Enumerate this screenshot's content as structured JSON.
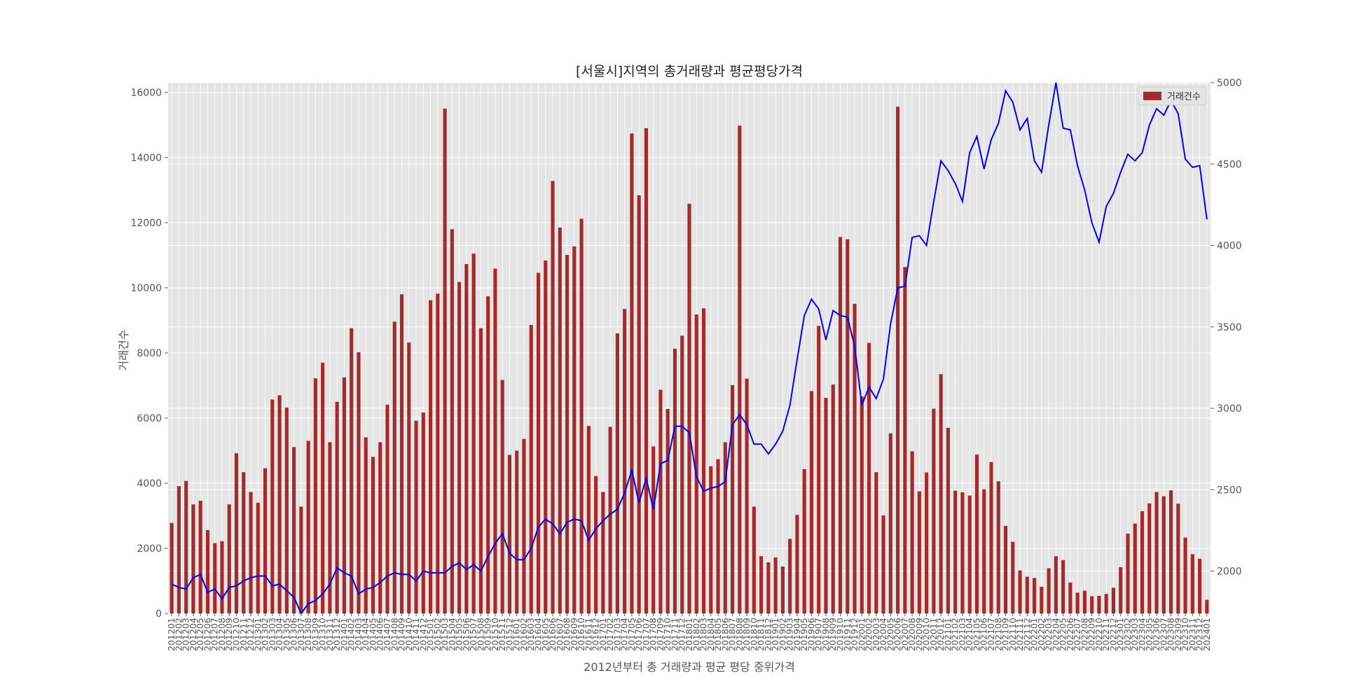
{
  "chart_data": {
    "type": "bar",
    "title": "[서울시]지역의 총거래량과 평균평당가격",
    "xlabel": "2012년부터 총 거래량과 평균 평당 중위가격",
    "ylabel": "거래건수",
    "ylim": [
      0,
      16300
    ],
    "y_ticks": [
      0,
      2000,
      4000,
      6000,
      8000,
      10000,
      12000,
      14000,
      16000
    ],
    "y2lim": [
      1740,
      5000
    ],
    "y2_ticks": [
      2000,
      2500,
      3000,
      3500,
      4000,
      4500,
      5000
    ],
    "grid": true,
    "legend": "top-right",
    "colors": {
      "bar": "#a52a2a",
      "line": "#0000ff",
      "plot_bg": "#e5e5e5",
      "grid": "#ffffff"
    },
    "categories": [
      "201201",
      "201202",
      "201203",
      "201204",
      "201205",
      "201206",
      "201207",
      "201208",
      "201209",
      "201210",
      "201211",
      "201212",
      "201301",
      "201302",
      "201303",
      "201304",
      "201305",
      "201306",
      "201307",
      "201308",
      "201309",
      "201310",
      "201311",
      "201312",
      "201401",
      "201402",
      "201403",
      "201404",
      "201405",
      "201406",
      "201407",
      "201408",
      "201409",
      "201410",
      "201411",
      "201412",
      "201501",
      "201502",
      "201503",
      "201504",
      "201505",
      "201506",
      "201507",
      "201508",
      "201509",
      "201510",
      "201511",
      "201512",
      "201601",
      "201602",
      "201603",
      "201604",
      "201605",
      "201606",
      "201607",
      "201608",
      "201609",
      "201610",
      "201611",
      "201612",
      "201701",
      "201702",
      "201703",
      "201704",
      "201705",
      "201706",
      "201707",
      "201708",
      "201709",
      "201710",
      "201711",
      "201712",
      "201801",
      "201802",
      "201803",
      "201804",
      "201805",
      "201806",
      "201807",
      "201808",
      "201809",
      "201810",
      "201811",
      "201812",
      "201901",
      "201902",
      "201903",
      "201904",
      "201905",
      "201906",
      "201907",
      "201908",
      "201909",
      "201910",
      "201911",
      "201912",
      "202001",
      "202002",
      "202003",
      "202004",
      "202005",
      "202006",
      "202007",
      "202008",
      "202009",
      "202010",
      "202011",
      "202012",
      "202101",
      "202102",
      "202103",
      "202104",
      "202105",
      "202106",
      "202107",
      "202108",
      "202109",
      "202110",
      "202111",
      "202112",
      "202201",
      "202202",
      "202203",
      "202204",
      "202205",
      "202206",
      "202207",
      "202208",
      "202209",
      "202210",
      "202211",
      "202212",
      "202301",
      "202302",
      "202303",
      "202304",
      "202305",
      "202306",
      "202307",
      "202308",
      "202309",
      "202310",
      "202311",
      "202312",
      "202401"
    ],
    "series": [
      {
        "name": "거래건수",
        "type": "bar",
        "axis": "left",
        "values": [
          2780,
          3910,
          4070,
          3350,
          3460,
          2560,
          2160,
          2220,
          3350,
          4920,
          4340,
          3730,
          3400,
          4460,
          6570,
          6700,
          6320,
          5110,
          3280,
          5300,
          7220,
          7700,
          5260,
          6500,
          7250,
          8760,
          8020,
          5410,
          4810,
          5260,
          6410,
          8960,
          9800,
          8320,
          5920,
          6170,
          9620,
          9820,
          15500,
          11800,
          10180,
          10730,
          11050,
          8760,
          9740,
          10590,
          7170,
          4870,
          5000,
          5360,
          8860,
          10460,
          10840,
          13280,
          11850,
          11010,
          11270,
          12120,
          5760,
          4220,
          3730,
          5730,
          8600,
          9350,
          14740,
          12840,
          14900,
          5130,
          6870,
          6280,
          8130,
          8530,
          12580,
          9180,
          9370,
          4520,
          4740,
          5260,
          7010,
          14980,
          7210,
          3280,
          1760,
          1570,
          1720,
          1440,
          2290,
          3030,
          4430,
          6830,
          8830,
          6620,
          7030,
          11560,
          11490,
          9510,
          6660,
          8310,
          4340,
          3010,
          5530,
          15560,
          10640,
          4980,
          3750,
          4330,
          6290,
          7350,
          5700,
          3770,
          3720,
          3620,
          4880,
          3810,
          4650,
          4060,
          2690,
          2200,
          1320,
          1130,
          1090,
          820,
          1390,
          1760,
          1640,
          950,
          640,
          700,
          530,
          540,
          600,
          790,
          1420,
          2450,
          2760,
          3140,
          3380,
          3730,
          3600,
          3780,
          3370,
          2330,
          1820,
          1680,
          420
        ]
      },
      {
        "name": "평균평당가격",
        "type": "line",
        "axis": "right",
        "values": [
          1920,
          1900,
          1890,
          1960,
          1980,
          1870,
          1890,
          1830,
          1900,
          1910,
          1940,
          1960,
          1970,
          1970,
          1910,
          1920,
          1880,
          1840,
          1740,
          1800,
          1820,
          1860,
          1920,
          2020,
          1990,
          1970,
          1860,
          1890,
          1900,
          1930,
          1970,
          1990,
          1980,
          1980,
          1940,
          2000,
          1990,
          1990,
          1990,
          2030,
          2050,
          2010,
          2040,
          2000,
          2090,
          2170,
          2230,
          2110,
          2070,
          2070,
          2140,
          2270,
          2320,
          2290,
          2230,
          2300,
          2320,
          2310,
          2190,
          2260,
          2310,
          2350,
          2380,
          2480,
          2620,
          2420,
          2570,
          2380,
          2660,
          2680,
          2890,
          2890,
          2850,
          2580,
          2490,
          2510,
          2520,
          2550,
          2900,
          2960,
          2900,
          2780,
          2780,
          2720,
          2780,
          2860,
          3020,
          3300,
          3570,
          3670,
          3610,
          3420,
          3600,
          3570,
          3560,
          3380,
          3020,
          3130,
          3060,
          3180,
          3520,
          3740,
          3750,
          4050,
          4060,
          4000,
          4270,
          4520,
          4460,
          4380,
          4270,
          4570,
          4670,
          4470,
          4650,
          4750,
          4950,
          4880,
          4710,
          4780,
          4520,
          4450,
          4740,
          5000,
          4720,
          4710,
          4490,
          4340,
          4140,
          4020,
          4240,
          4320,
          4450,
          4560,
          4520,
          4570,
          4740,
          4840,
          4800,
          4890,
          4810,
          4530,
          4480,
          4490,
          4160
        ]
      }
    ]
  }
}
